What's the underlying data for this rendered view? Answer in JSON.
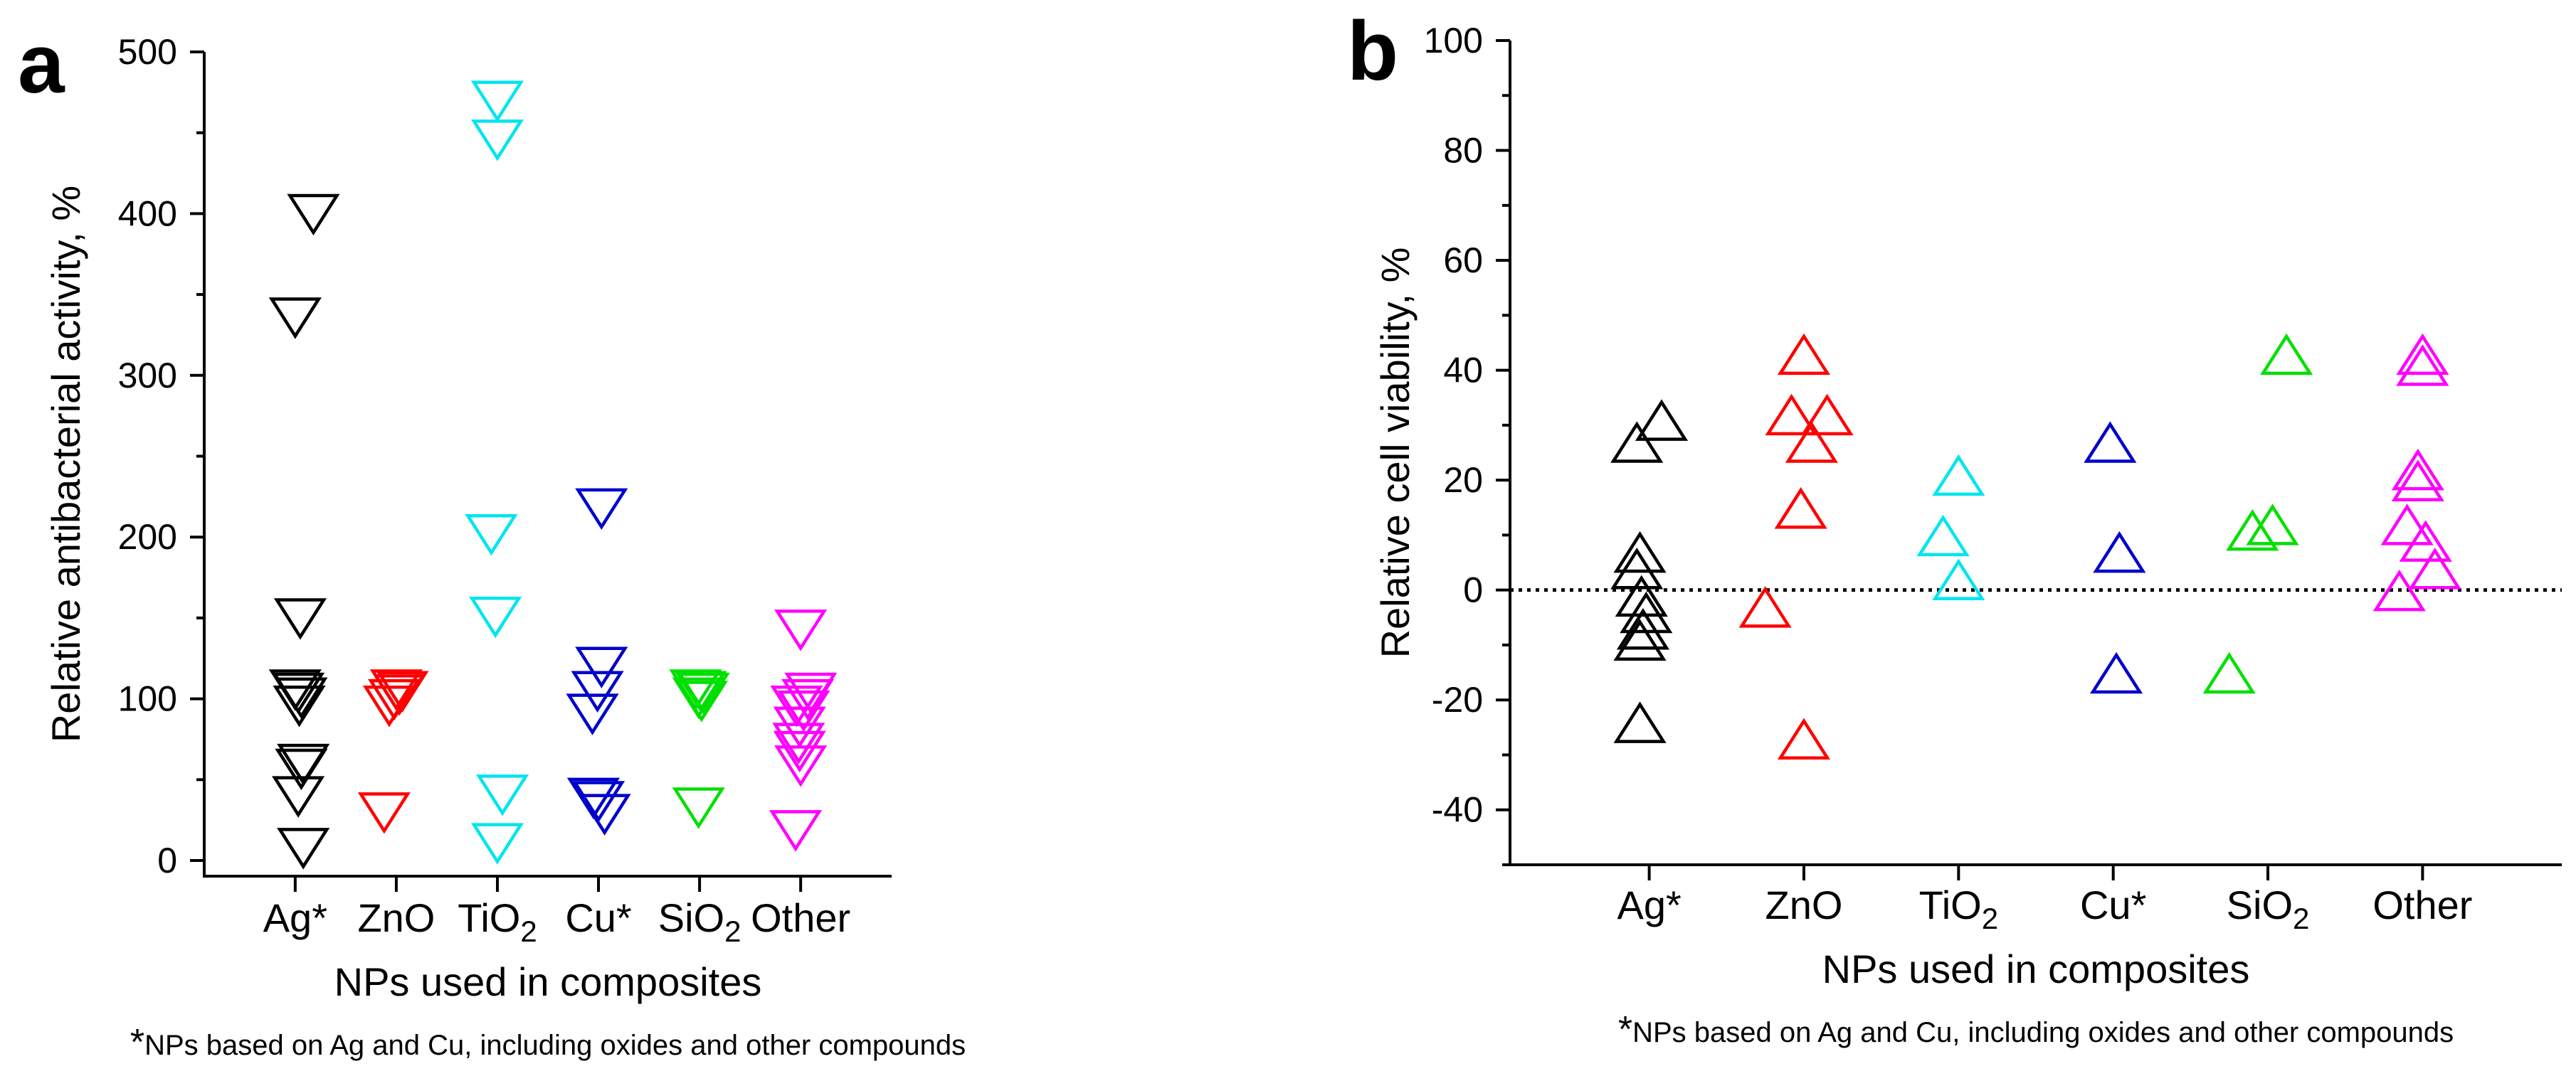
{
  "chart_data": [
    {
      "panel": "a",
      "type": "scatter",
      "marker": "triangle-down",
      "title": "",
      "xlabel": "NPs used in composites",
      "ylabel": "Relative antibacterial activity, %",
      "footnote_mark": "*",
      "footnote": "NPs based on Ag and Cu, including oxides and other compounds",
      "ylim": [
        0,
        500
      ],
      "yticks": [
        "0",
        "100",
        "200",
        "300",
        "400",
        "500"
      ],
      "categories": [
        {
          "base": "Ag",
          "suffix": "*",
          "sub": "",
          "color": "#000000"
        },
        {
          "base": "ZnO",
          "suffix": "",
          "sub": "",
          "color": "#ff0000"
        },
        {
          "base": "TiO",
          "suffix": "",
          "sub": "2",
          "color": "#00e5ee"
        },
        {
          "base": "Cu",
          "suffix": "*",
          "sub": "",
          "color": "#0000cc"
        },
        {
          "base": "SiO",
          "suffix": "",
          "sub": "2",
          "color": "#00e000"
        },
        {
          "base": "Other",
          "suffix": "",
          "sub": "",
          "color": "#ff00ff"
        }
      ],
      "points": [
        {
          "cat": 0,
          "dx": 0.18,
          "y": 397
        },
        {
          "cat": 0,
          "dx": 0.0,
          "y": 333
        },
        {
          "cat": 0,
          "dx": 0.05,
          "y": 147
        },
        {
          "cat": 0,
          "dx": 0.0,
          "y": 103
        },
        {
          "cat": 0,
          "dx": 0.03,
          "y": 101
        },
        {
          "cat": 0,
          "dx": 0.06,
          "y": 98
        },
        {
          "cat": 0,
          "dx": 0.04,
          "y": 93
        },
        {
          "cat": 0,
          "dx": 0.08,
          "y": 57
        },
        {
          "cat": 0,
          "dx": 0.06,
          "y": 54
        },
        {
          "cat": 0,
          "dx": 0.03,
          "y": 37
        },
        {
          "cat": 0,
          "dx": 0.08,
          "y": 5
        },
        {
          "cat": 1,
          "dx": 0.0,
          "y": 103
        },
        {
          "cat": 1,
          "dx": 0.06,
          "y": 102
        },
        {
          "cat": 1,
          "dx": 0.03,
          "y": 100
        },
        {
          "cat": 1,
          "dx": -0.02,
          "y": 97
        },
        {
          "cat": 1,
          "dx": -0.07,
          "y": 93
        },
        {
          "cat": 1,
          "dx": -0.12,
          "y": 27
        },
        {
          "cat": 2,
          "dx": 0.0,
          "y": 467
        },
        {
          "cat": 2,
          "dx": 0.0,
          "y": 443
        },
        {
          "cat": 2,
          "dx": -0.06,
          "y": 199
        },
        {
          "cat": 2,
          "dx": -0.02,
          "y": 148
        },
        {
          "cat": 2,
          "dx": 0.05,
          "y": 38
        },
        {
          "cat": 2,
          "dx": 0.0,
          "y": 8
        },
        {
          "cat": 3,
          "dx": 0.03,
          "y": 215
        },
        {
          "cat": 3,
          "dx": 0.03,
          "y": 117
        },
        {
          "cat": 3,
          "dx": -0.01,
          "y": 102
        },
        {
          "cat": 3,
          "dx": -0.06,
          "y": 88
        },
        {
          "cat": 3,
          "dx": -0.05,
          "y": 36
        },
        {
          "cat": 3,
          "dx": 0.0,
          "y": 34
        },
        {
          "cat": 3,
          "dx": 0.06,
          "y": 26
        },
        {
          "cat": 4,
          "dx": -0.04,
          "y": 103
        },
        {
          "cat": 4,
          "dx": 0.01,
          "y": 102
        },
        {
          "cat": 4,
          "dx": 0.04,
          "y": 101
        },
        {
          "cat": 4,
          "dx": -0.01,
          "y": 98
        },
        {
          "cat": 4,
          "dx": 0.02,
          "y": 96
        },
        {
          "cat": 4,
          "dx": -0.01,
          "y": 30
        },
        {
          "cat": 5,
          "dx": 0.0,
          "y": 140
        },
        {
          "cat": 5,
          "dx": 0.1,
          "y": 101
        },
        {
          "cat": 5,
          "dx": 0.07,
          "y": 97
        },
        {
          "cat": 5,
          "dx": -0.04,
          "y": 93
        },
        {
          "cat": 5,
          "dx": 0.03,
          "y": 90
        },
        {
          "cat": 5,
          "dx": -0.01,
          "y": 80
        },
        {
          "cat": 5,
          "dx": -0.02,
          "y": 70
        },
        {
          "cat": 5,
          "dx": -0.01,
          "y": 65
        },
        {
          "cat": 5,
          "dx": 0.0,
          "y": 56
        },
        {
          "cat": 5,
          "dx": -0.05,
          "y": 16
        }
      ]
    },
    {
      "panel": "b",
      "type": "scatter",
      "marker": "triangle-up",
      "title": "",
      "xlabel": "NPs used in composites",
      "ylabel": "Relative cell viability, %",
      "footnote_mark": "*",
      "footnote": "NPs based on Ag and Cu, including oxides and other compounds",
      "ylim": [
        -50,
        100
      ],
      "yticks": [
        "-40",
        "-20",
        "0",
        "20",
        "40",
        "60",
        "80",
        "100"
      ],
      "reference_line": 0,
      "categories": [
        {
          "base": "Ag",
          "suffix": "*",
          "sub": "",
          "color": "#000000"
        },
        {
          "base": "ZnO",
          "suffix": "",
          "sub": "",
          "color": "#ff0000"
        },
        {
          "base": "TiO",
          "suffix": "",
          "sub": "2",
          "color": "#00e5ee"
        },
        {
          "base": "Cu",
          "suffix": "*",
          "sub": "",
          "color": "#0000cc"
        },
        {
          "base": "SiO",
          "suffix": "",
          "sub": "2",
          "color": "#00e000"
        },
        {
          "base": "Other",
          "suffix": "",
          "sub": "",
          "color": "#ff00ff"
        }
      ],
      "points": [
        {
          "cat": 0,
          "dx": 0.08,
          "y": 30
        },
        {
          "cat": 0,
          "dx": -0.08,
          "y": 26
        },
        {
          "cat": 0,
          "dx": -0.06,
          "y": 6
        },
        {
          "cat": 0,
          "dx": -0.08,
          "y": 3
        },
        {
          "cat": 0,
          "dx": -0.05,
          "y": -2
        },
        {
          "cat": 0,
          "dx": -0.02,
          "y": -5
        },
        {
          "cat": 0,
          "dx": -0.04,
          "y": -8
        },
        {
          "cat": 0,
          "dx": -0.06,
          "y": -10
        },
        {
          "cat": 0,
          "dx": -0.06,
          "y": -25
        },
        {
          "cat": 1,
          "dx": 0.0,
          "y": 42
        },
        {
          "cat": 1,
          "dx": 0.15,
          "y": 31
        },
        {
          "cat": 1,
          "dx": -0.08,
          "y": 31
        },
        {
          "cat": 1,
          "dx": 0.05,
          "y": 26
        },
        {
          "cat": 1,
          "dx": -0.02,
          "y": 14
        },
        {
          "cat": 1,
          "dx": -0.25,
          "y": -4
        },
        {
          "cat": 1,
          "dx": 0.0,
          "y": -28
        },
        {
          "cat": 2,
          "dx": 0.0,
          "y": 20
        },
        {
          "cat": 2,
          "dx": -0.1,
          "y": 9
        },
        {
          "cat": 2,
          "dx": 0.0,
          "y": 1
        },
        {
          "cat": 3,
          "dx": -0.02,
          "y": 26
        },
        {
          "cat": 3,
          "dx": 0.04,
          "y": 6
        },
        {
          "cat": 3,
          "dx": 0.02,
          "y": -16
        },
        {
          "cat": 4,
          "dx": 0.12,
          "y": 42
        },
        {
          "cat": 4,
          "dx": 0.03,
          "y": 11
        },
        {
          "cat": 4,
          "dx": -0.1,
          "y": 10
        },
        {
          "cat": 4,
          "dx": -0.25,
          "y": -16
        },
        {
          "cat": 5,
          "dx": 0.0,
          "y": 42
        },
        {
          "cat": 5,
          "dx": 0.0,
          "y": 40
        },
        {
          "cat": 5,
          "dx": -0.03,
          "y": 21
        },
        {
          "cat": 5,
          "dx": -0.03,
          "y": 19
        },
        {
          "cat": 5,
          "dx": -0.1,
          "y": 11
        },
        {
          "cat": 5,
          "dx": 0.02,
          "y": 8
        },
        {
          "cat": 5,
          "dx": 0.08,
          "y": 3
        },
        {
          "cat": 5,
          "dx": -0.15,
          "y": -1
        }
      ]
    }
  ]
}
